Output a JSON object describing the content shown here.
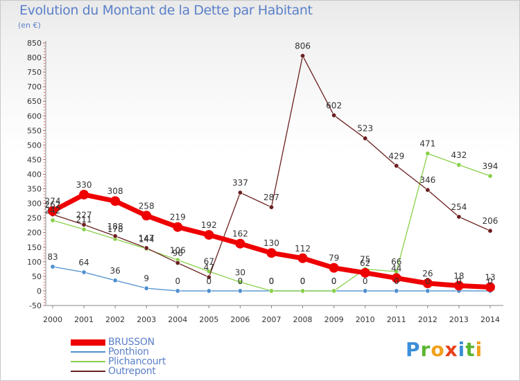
{
  "title": "Evolution du Montant de la Dette par Habitant",
  "subtitle": "(en €)",
  "logo": {
    "text": "Proxiti",
    "letters": [
      {
        "ch": "P",
        "color": "#3b8fd9"
      },
      {
        "ch": "r",
        "color": "#5cb531"
      },
      {
        "ch": "o",
        "color": "#f2a01c"
      },
      {
        "ch": "x",
        "color": "#e8401c"
      },
      {
        "ch": "i",
        "color": "#3b8fd9"
      },
      {
        "ch": "t",
        "color": "#5cb531"
      },
      {
        "ch": "i",
        "color": "#f2a01c"
      }
    ]
  },
  "chart_data": {
    "type": "line",
    "title": "Evolution du Montant de la Dette par Habitant",
    "ylabel": "(en €)",
    "xlabel": "",
    "ylim": [
      -50,
      850
    ],
    "ytick_step": 50,
    "grid": false,
    "legend_position": "bottom-left",
    "x": [
      "2000",
      "2001",
      "2002",
      "2003",
      "2004",
      "2005",
      "2006",
      "2007",
      "2008",
      "2009",
      "2010",
      "2011",
      "2012",
      "2013",
      "2014"
    ],
    "series": [
      {
        "name": "BRUSSON",
        "color": "#ee0000",
        "thick": true,
        "values": [
          274,
          330,
          308,
          258,
          219,
          192,
          162,
          130,
          112,
          79,
          62,
          44,
          26,
          18,
          13
        ]
      },
      {
        "name": "Ponthion",
        "color": "#4f8fcf",
        "thick": false,
        "values": [
          83,
          64,
          36,
          9,
          0,
          0,
          0,
          0,
          0,
          0,
          0,
          0,
          0,
          0,
          0
        ]
      },
      {
        "name": "Plichancourt",
        "color": "#88d048",
        "thick": false,
        "values": [
          242,
          211,
          178,
          144,
          106,
          67,
          30,
          0,
          0,
          0,
          75,
          66,
          471,
          432,
          394
        ]
      },
      {
        "name": "Outrepont",
        "color": "#6b1f1f",
        "thick": false,
        "values": [
          262,
          227,
          188,
          147,
          96,
          47,
          337,
          287,
          806,
          602,
          523,
          429,
          346,
          254,
          206
        ]
      }
    ]
  }
}
